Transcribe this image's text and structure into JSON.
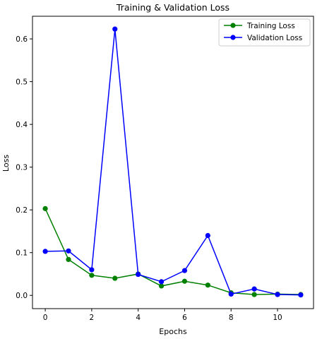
{
  "chart_data": {
    "type": "line",
    "title": "Training & Validation Loss",
    "xlabel": "Epochs",
    "ylabel": "Loss",
    "x": [
      0,
      1,
      2,
      3,
      4,
      5,
      6,
      7,
      8,
      9,
      10,
      11
    ],
    "xlim": [
      -0.55,
      11.55
    ],
    "ylim": [
      -0.031,
      0.653
    ],
    "x_ticks": [
      0,
      2,
      4,
      6,
      8,
      10
    ],
    "x_tick_labels": [
      "0",
      "2",
      "4",
      "6",
      "8",
      "10"
    ],
    "y_ticks": [
      0.0,
      0.1,
      0.2,
      0.3,
      0.4,
      0.5,
      0.6
    ],
    "y_tick_labels": [
      "0.0",
      "0.1",
      "0.2",
      "0.3",
      "0.4",
      "0.5",
      "0.6"
    ],
    "grid": false,
    "legend_position": "upper right",
    "series": [
      {
        "name": "Training Loss",
        "color": "#008000",
        "marker": "circle",
        "values": [
          0.203,
          0.084,
          0.047,
          0.04,
          0.05,
          0.022,
          0.033,
          0.024,
          0.006,
          0.002,
          0.003,
          0.002
        ]
      },
      {
        "name": "Validation Loss",
        "color": "#0000ff",
        "marker": "circle",
        "values": [
          0.103,
          0.104,
          0.06,
          0.623,
          0.049,
          0.032,
          0.058,
          0.14,
          0.003,
          0.015,
          0.002,
          0.001
        ]
      }
    ]
  }
}
